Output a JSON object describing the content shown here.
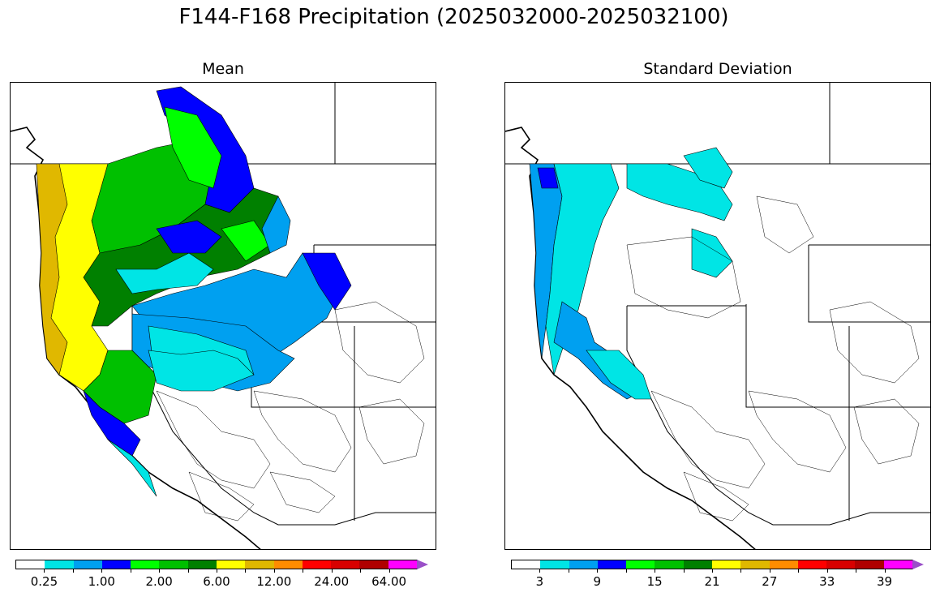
{
  "figure": {
    "title": "F144-F168 Precipitation (2025032000-2025032100)"
  },
  "panels": [
    {
      "title": "Mean",
      "colorbar": {
        "colors": [
          "#ffffff",
          "#00e5e5",
          "#00a0f0",
          "#0000ff",
          "#00ff00",
          "#00c000",
          "#008000",
          "#ffff00",
          "#e0b800",
          "#ff8c00",
          "#ff0000",
          "#d80000",
          "#b00000",
          "#ff00ff",
          "#9a50c8"
        ],
        "tick_labels": [
          "0.25",
          "1.00",
          "2.00",
          "6.00",
          "12.00",
          "24.00",
          "64.00"
        ],
        "extend": "max"
      }
    },
    {
      "title": "Standard Deviation",
      "colorbar": {
        "colors": [
          "#ffffff",
          "#00e5e5",
          "#00a0f0",
          "#0000ff",
          "#00ff00",
          "#00c000",
          "#008000",
          "#ffff00",
          "#e0b800",
          "#ff8c00",
          "#ff0000",
          "#d80000",
          "#b00000",
          "#ff00ff",
          "#9a50c8"
        ],
        "tick_labels": [
          "3",
          "9",
          "15",
          "21",
          "27",
          "33",
          "39"
        ],
        "extend": "max"
      }
    }
  ]
}
